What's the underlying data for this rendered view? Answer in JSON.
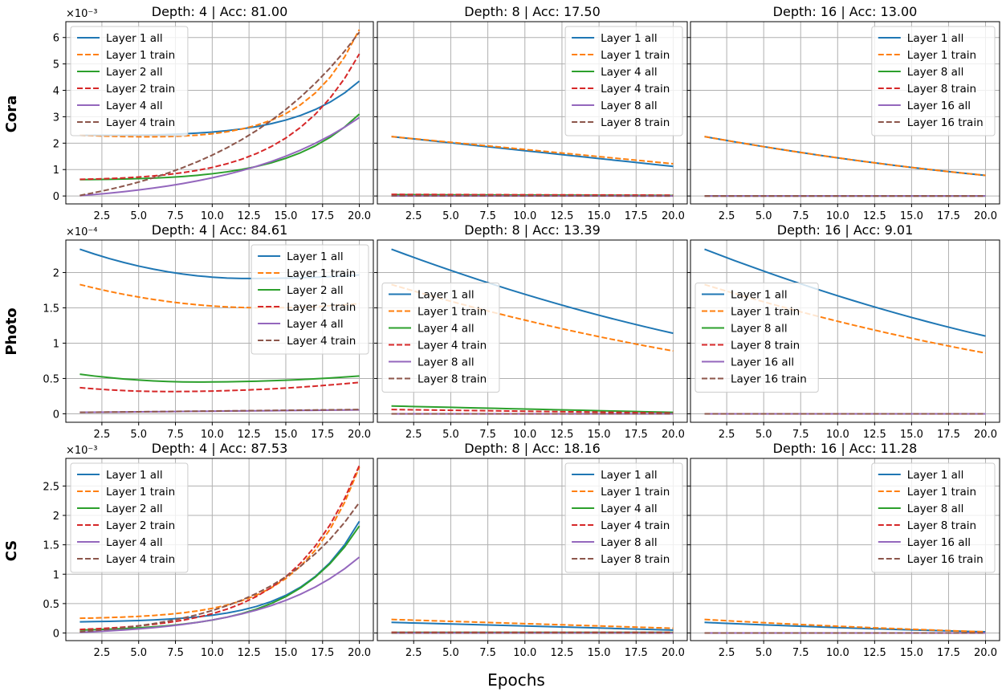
{
  "figure": {
    "xlabel": "Epochs",
    "row_labels": [
      "Cora",
      "Photo",
      "CS"
    ]
  },
  "chart_data": [
    {
      "type": "line",
      "dataset": "Cora",
      "title": "Depth: 4 | Acc: 81.00",
      "exponent": "×10⁻³",
      "scale": 0.001,
      "xlim": [
        0.05,
        20.95
      ],
      "ylim": [
        -0.3,
        6.6
      ],
      "xticks": [
        2.5,
        5.0,
        7.5,
        10.0,
        12.5,
        15.0,
        17.5,
        20.0
      ],
      "yticks": [
        0,
        1,
        2,
        3,
        4,
        5,
        6
      ],
      "legend_loc": "upper-left",
      "series": [
        {
          "name": "Layer 1 all",
          "color": "#1f77b4",
          "dash": false,
          "kind": "exp",
          "params": [
            2.3,
            4.5,
            0.05,
            4.35
          ]
        },
        {
          "name": "Layer 1 train",
          "color": "#ff7f0e",
          "dash": false,
          "kind": "exp",
          "params": [
            2.3,
            5.5,
            0.15,
            6.3
          ]
        },
        {
          "name": "Layer 2 all",
          "color": "#2ca02c",
          "dash": false,
          "kind": "exp",
          "params": [
            0.62,
            4.0,
            0.04,
            3.1
          ]
        },
        {
          "name": "Layer 2 train",
          "color": "#d62728",
          "dash": false,
          "kind": "exp",
          "params": [
            0.63,
            4.0,
            0.05,
            5.38
          ]
        },
        {
          "name": "Layer 4 all",
          "color": "#9467bd",
          "dash": false,
          "kind": "exp",
          "params": [
            0.01,
            2.2,
            0.0,
            2.97
          ]
        },
        {
          "name": "Layer 4 train",
          "color": "#8c564b",
          "dash": false,
          "kind": "exp",
          "params": [
            0.02,
            2.0,
            0.0,
            6.2
          ]
        }
      ]
    },
    {
      "type": "line",
      "dataset": "Cora",
      "title": "Depth: 8 | Acc: 17.50",
      "exponent": "",
      "scale": 0.001,
      "xlim": [
        0.05,
        20.95
      ],
      "ylim": [
        -0.3,
        6.6
      ],
      "xticks": [
        2.5,
        5.0,
        7.5,
        10.0,
        12.5,
        15.0,
        17.5,
        20.0
      ],
      "yticks": [],
      "legend_loc": "upper-right",
      "series": [
        {
          "name": "Layer 1 all",
          "color": "#1f77b4",
          "dash": false,
          "kind": "lin",
          "params": [
            2.25,
            1.12,
            0.0
          ]
        },
        {
          "name": "Layer 1 train",
          "color": "#ff7f0e",
          "dash": false,
          "kind": "lin",
          "params": [
            2.25,
            1.22,
            0.0
          ]
        },
        {
          "name": "Layer 4 all",
          "color": "#2ca02c",
          "dash": false,
          "kind": "lin",
          "params": [
            0.05,
            0.02,
            0.0
          ]
        },
        {
          "name": "Layer 4 train",
          "color": "#d62728",
          "dash": false,
          "kind": "lin",
          "params": [
            0.06,
            0.03,
            0.0
          ]
        },
        {
          "name": "Layer 8 all",
          "color": "#9467bd",
          "dash": false,
          "kind": "lin",
          "params": [
            0.0,
            0.0,
            0.0
          ]
        },
        {
          "name": "Layer 8 train",
          "color": "#8c564b",
          "dash": false,
          "kind": "lin",
          "params": [
            0.01,
            0.0,
            0.0
          ]
        }
      ]
    },
    {
      "type": "line",
      "dataset": "Cora",
      "title": "Depth: 16 | Acc: 13.00",
      "exponent": "",
      "scale": 0.001,
      "xlim": [
        0.05,
        20.95
      ],
      "ylim": [
        -0.3,
        6.6
      ],
      "xticks": [
        2.5,
        5.0,
        7.5,
        10.0,
        12.5,
        15.0,
        17.5,
        20.0
      ],
      "yticks": [],
      "legend_loc": "upper-right",
      "series": [
        {
          "name": "Layer 1 all",
          "color": "#1f77b4",
          "dash": false,
          "kind": "lin",
          "params": [
            2.25,
            0.78,
            0.3
          ]
        },
        {
          "name": "Layer 1 train",
          "color": "#ff7f0e",
          "dash": false,
          "kind": "lin",
          "params": [
            2.25,
            0.78,
            0.3
          ]
        },
        {
          "name": "Layer 8 all",
          "color": "#2ca02c",
          "dash": false,
          "kind": "lin",
          "params": [
            0.0,
            0.0,
            0.0
          ]
        },
        {
          "name": "Layer 8 train",
          "color": "#d62728",
          "dash": false,
          "kind": "lin",
          "params": [
            0.0,
            0.0,
            0.0
          ]
        },
        {
          "name": "Layer 16 all",
          "color": "#9467bd",
          "dash": false,
          "kind": "lin",
          "params": [
            0.0,
            0.0,
            0.0
          ]
        },
        {
          "name": "Layer 16 train",
          "color": "#8c564b",
          "dash": false,
          "kind": "lin",
          "params": [
            0.0,
            0.0,
            0.0
          ]
        }
      ]
    },
    {
      "type": "line",
      "dataset": "Photo",
      "title": "Depth: 4 | Acc: 84.61",
      "exponent": "×10⁻⁴",
      "scale": 0.0001,
      "xlim": [
        0.05,
        20.95
      ],
      "ylim": [
        -0.12,
        2.46
      ],
      "xticks": [
        2.5,
        5.0,
        7.5,
        10.0,
        12.5,
        15.0,
        17.5,
        20.0
      ],
      "yticks": [
        0.0,
        0.5,
        1.0,
        1.5,
        2.0
      ],
      "legend_loc": "upper-right",
      "series": [
        {
          "name": "Layer 1 all",
          "color": "#1f77b4",
          "dash": false,
          "kind": "quad",
          "params": [
            2.33,
            1.915,
            1.965,
            12.5
          ]
        },
        {
          "name": "Layer 1 train",
          "color": "#ff7f0e",
          "dash": false,
          "kind": "quad",
          "params": [
            1.83,
            1.5,
            1.56,
            13.5
          ]
        },
        {
          "name": "Layer 2 all",
          "color": "#2ca02c",
          "dash": false,
          "kind": "quad",
          "params": [
            0.56,
            0.45,
            0.535,
            9.0
          ]
        },
        {
          "name": "Layer 2 train",
          "color": "#d62728",
          "dash": false,
          "kind": "quad",
          "params": [
            0.37,
            0.315,
            0.445,
            7.0
          ]
        },
        {
          "name": "Layer 4 all",
          "color": "#9467bd",
          "dash": false,
          "kind": "lin",
          "params": [
            0.02,
            0.055,
            0.0
          ]
        },
        {
          "name": "Layer 4 train",
          "color": "#8c564b",
          "dash": false,
          "kind": "lin",
          "params": [
            0.02,
            0.06,
            0.0
          ]
        }
      ]
    },
    {
      "type": "line",
      "dataset": "Photo",
      "title": "Depth: 8 | Acc: 13.39",
      "exponent": "",
      "scale": 0.0001,
      "xlim": [
        0.05,
        20.95
      ],
      "ylim": [
        -0.12,
        2.46
      ],
      "xticks": [
        2.5,
        5.0,
        7.5,
        10.0,
        12.5,
        15.0,
        17.5,
        20.0
      ],
      "yticks": [],
      "legend_loc": "center-left",
      "series": [
        {
          "name": "Layer 1 all",
          "color": "#1f77b4",
          "dash": false,
          "kind": "lin",
          "params": [
            2.33,
            1.14,
            0.25
          ]
        },
        {
          "name": "Layer 1 train",
          "color": "#ff7f0e",
          "dash": false,
          "kind": "lin",
          "params": [
            1.83,
            0.89,
            0.25
          ]
        },
        {
          "name": "Layer 4 all",
          "color": "#2ca02c",
          "dash": false,
          "kind": "lin",
          "params": [
            0.11,
            0.02,
            0.0
          ]
        },
        {
          "name": "Layer 4 train",
          "color": "#d62728",
          "dash": false,
          "kind": "lin",
          "params": [
            0.06,
            0.01,
            0.0
          ]
        },
        {
          "name": "Layer 8 all",
          "color": "#9467bd",
          "dash": false,
          "kind": "lin",
          "params": [
            0.0,
            0.0,
            0.0
          ]
        },
        {
          "name": "Layer 8 train",
          "color": "#8c564b",
          "dash": false,
          "kind": "lin",
          "params": [
            0.0,
            0.0,
            0.0
          ]
        }
      ]
    },
    {
      "type": "line",
      "dataset": "Photo",
      "title": "Depth: 16 | Acc: 9.01",
      "exponent": "",
      "scale": 0.0001,
      "xlim": [
        0.05,
        20.95
      ],
      "ylim": [
        -0.12,
        2.46
      ],
      "xticks": [
        2.5,
        5.0,
        7.5,
        10.0,
        12.5,
        15.0,
        17.5,
        20.0
      ],
      "yticks": [],
      "legend_loc": "center-left",
      "series": [
        {
          "name": "Layer 1 all",
          "color": "#1f77b4",
          "dash": false,
          "kind": "lin",
          "params": [
            2.33,
            1.1,
            0.25
          ]
        },
        {
          "name": "Layer 1 train",
          "color": "#ff7f0e",
          "dash": false,
          "kind": "lin",
          "params": [
            1.83,
            0.86,
            0.25
          ]
        },
        {
          "name": "Layer 8 all",
          "color": "#2ca02c",
          "dash": false,
          "kind": "lin",
          "params": [
            0.0,
            0.0,
            0.0
          ]
        },
        {
          "name": "Layer 8 train",
          "color": "#d62728",
          "dash": false,
          "kind": "lin",
          "params": [
            0.0,
            0.0,
            0.0
          ]
        },
        {
          "name": "Layer 16 all",
          "color": "#9467bd",
          "dash": false,
          "kind": "lin",
          "params": [
            0.0,
            0.0,
            0.0
          ]
        },
        {
          "name": "Layer 16 train",
          "color": "#8c564b",
          "dash": false,
          "kind": "lin",
          "params": [
            0.0,
            0.0,
            0.0
          ]
        }
      ]
    },
    {
      "type": "line",
      "dataset": "CS",
      "title": "Depth: 4 | Acc: 87.53",
      "exponent": "×10⁻³",
      "scale": 0.001,
      "xlim": [
        0.05,
        20.95
      ],
      "ylim": [
        -0.13,
        2.97
      ],
      "xticks": [
        2.5,
        5.0,
        7.5,
        10.0,
        12.5,
        15.0,
        17.5,
        20.0
      ],
      "yticks": [
        0.0,
        0.5,
        1.0,
        1.5,
        2.0,
        2.5
      ],
      "legend_loc": "upper-left",
      "series": [
        {
          "name": "Layer 1 all",
          "color": "#1f77b4",
          "dash": false,
          "kind": "exp",
          "params": [
            0.19,
            5.0,
            0.0,
            1.9
          ]
        },
        {
          "name": "Layer 1 train",
          "color": "#ff7f0e",
          "dash": false,
          "kind": "exp",
          "params": [
            0.25,
            5.0,
            0.0,
            2.82
          ]
        },
        {
          "name": "Layer 2 all",
          "color": "#2ca02c",
          "dash": false,
          "kind": "exp",
          "params": [
            0.05,
            4.2,
            0.0,
            1.82
          ]
        },
        {
          "name": "Layer 2 train",
          "color": "#d62728",
          "dash": false,
          "kind": "exp",
          "params": [
            0.06,
            4.2,
            0.0,
            2.85
          ]
        },
        {
          "name": "Layer 4 all",
          "color": "#9467bd",
          "dash": false,
          "kind": "exp",
          "params": [
            0.01,
            3.0,
            0.0,
            1.29
          ]
        },
        {
          "name": "Layer 4 train",
          "color": "#8c564b",
          "dash": false,
          "kind": "exp",
          "params": [
            0.02,
            3.0,
            0.0,
            2.22
          ]
        }
      ]
    },
    {
      "type": "line",
      "dataset": "CS",
      "title": "Depth: 8 | Acc: 18.16",
      "exponent": "",
      "scale": 0.001,
      "xlim": [
        0.05,
        20.95
      ],
      "ylim": [
        -0.13,
        2.97
      ],
      "xticks": [
        2.5,
        5.0,
        7.5,
        10.0,
        12.5,
        15.0,
        17.5,
        20.0
      ],
      "yticks": [],
      "legend_loc": "upper-right",
      "series": [
        {
          "name": "Layer 1 all",
          "color": "#1f77b4",
          "dash": false,
          "kind": "lin",
          "params": [
            0.18,
            0.05,
            0.0
          ]
        },
        {
          "name": "Layer 1 train",
          "color": "#ff7f0e",
          "dash": false,
          "kind": "lin",
          "params": [
            0.23,
            0.08,
            0.0
          ]
        },
        {
          "name": "Layer 4 all",
          "color": "#2ca02c",
          "dash": false,
          "kind": "lin",
          "params": [
            0.01,
            0.01,
            0.0
          ]
        },
        {
          "name": "Layer 4 train",
          "color": "#d62728",
          "dash": false,
          "kind": "lin",
          "params": [
            0.01,
            0.01,
            0.0
          ]
        },
        {
          "name": "Layer 8 all",
          "color": "#9467bd",
          "dash": false,
          "kind": "lin",
          "params": [
            0.0,
            0.0,
            0.0
          ]
        },
        {
          "name": "Layer 8 train",
          "color": "#8c564b",
          "dash": false,
          "kind": "lin",
          "params": [
            0.0,
            0.0,
            0.0
          ]
        }
      ]
    },
    {
      "type": "line",
      "dataset": "CS",
      "title": "Depth: 16 | Acc: 11.28",
      "exponent": "",
      "scale": 0.001,
      "xlim": [
        0.05,
        20.95
      ],
      "ylim": [
        -0.13,
        2.97
      ],
      "xticks": [
        2.5,
        5.0,
        7.5,
        10.0,
        12.5,
        15.0,
        17.5,
        20.0
      ],
      "yticks": [],
      "legend_loc": "upper-right",
      "series": [
        {
          "name": "Layer 1 all",
          "color": "#1f77b4",
          "dash": false,
          "kind": "lin",
          "params": [
            0.18,
            0.02,
            0.3
          ]
        },
        {
          "name": "Layer 1 train",
          "color": "#ff7f0e",
          "dash": false,
          "kind": "lin",
          "params": [
            0.23,
            0.02,
            0.3
          ]
        },
        {
          "name": "Layer 8 all",
          "color": "#2ca02c",
          "dash": false,
          "kind": "lin",
          "params": [
            0.0,
            0.0,
            0.0
          ]
        },
        {
          "name": "Layer 8 train",
          "color": "#d62728",
          "dash": false,
          "kind": "lin",
          "params": [
            0.0,
            0.0,
            0.0
          ]
        },
        {
          "name": "Layer 16 all",
          "color": "#9467bd",
          "dash": false,
          "kind": "lin",
          "params": [
            0.0,
            0.0,
            0.0
          ]
        },
        {
          "name": "Layer 16 train",
          "color": "#8c564b",
          "dash": false,
          "kind": "lin",
          "params": [
            0.0,
            0.0,
            0.0
          ]
        }
      ]
    }
  ]
}
